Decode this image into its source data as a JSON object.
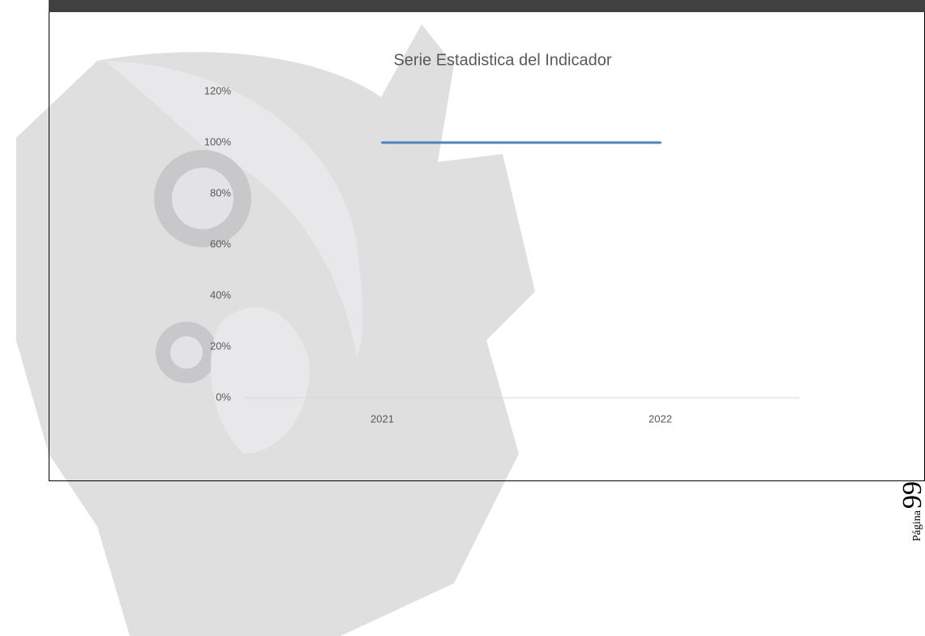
{
  "chart_data": {
    "type": "line",
    "title": "Serie Estadistica del Indicador",
    "categories": [
      "2021",
      "2022"
    ],
    "series": [
      {
        "color": "#4f81bd",
        "values": [
          100,
          100
        ]
      }
    ],
    "ylim": [
      0,
      120
    ],
    "yticks": [
      {
        "value": 0,
        "label": "0%"
      },
      {
        "value": 20,
        "label": "20%"
      },
      {
        "value": 40,
        "label": "40%"
      },
      {
        "value": 60,
        "label": "60%"
      },
      {
        "value": 80,
        "label": "80%"
      },
      {
        "value": 100,
        "label": "100%"
      },
      {
        "value": 120,
        "label": "120%"
      }
    ],
    "grid": false
  },
  "page_footer": {
    "label": "Página",
    "number": "99"
  }
}
